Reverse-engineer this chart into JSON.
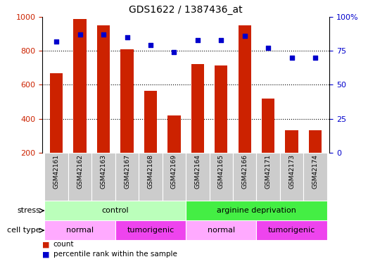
{
  "title": "GDS1622 / 1387436_at",
  "samples": [
    "GSM42161",
    "GSM42162",
    "GSM42163",
    "GSM42167",
    "GSM42168",
    "GSM42169",
    "GSM42164",
    "GSM42165",
    "GSM42166",
    "GSM42171",
    "GSM42173",
    "GSM42174"
  ],
  "counts": [
    670,
    985,
    950,
    810,
    565,
    420,
    720,
    715,
    950,
    520,
    335,
    335
  ],
  "percentiles": [
    82,
    87,
    87,
    85,
    79,
    74,
    83,
    83,
    86,
    77,
    70,
    70
  ],
  "ylim_left": [
    200,
    1000
  ],
  "ylim_right": [
    0,
    100
  ],
  "yticks_left": [
    200,
    400,
    600,
    800,
    1000
  ],
  "yticks_right": [
    0,
    25,
    50,
    75,
    100
  ],
  "bar_color": "#cc2200",
  "dot_color": "#0000cc",
  "grid_dotted_values": [
    400,
    600,
    800
  ],
  "stress_groups": [
    {
      "label": "control",
      "start": 0,
      "end": 6,
      "color": "#bbffbb"
    },
    {
      "label": "arginine deprivation",
      "start": 6,
      "end": 12,
      "color": "#44ee44"
    }
  ],
  "celltype_groups": [
    {
      "label": "normal",
      "start": 0,
      "end": 3,
      "color": "#ffaaff"
    },
    {
      "label": "tumorigenic",
      "start": 3,
      "end": 6,
      "color": "#ee44ee"
    },
    {
      "label": "normal",
      "start": 6,
      "end": 9,
      "color": "#ffaaff"
    },
    {
      "label": "tumorigenic",
      "start": 9,
      "end": 12,
      "color": "#ee44ee"
    }
  ],
  "stress_label": "stress",
  "celltype_label": "cell type",
  "legend_count_label": "count",
  "legend_pct_label": "percentile rank within the sample",
  "tick_label_color_left": "#cc2200",
  "tick_label_color_right": "#0000cc",
  "xtick_bg_color": "#cccccc",
  "bar_width": 0.55
}
